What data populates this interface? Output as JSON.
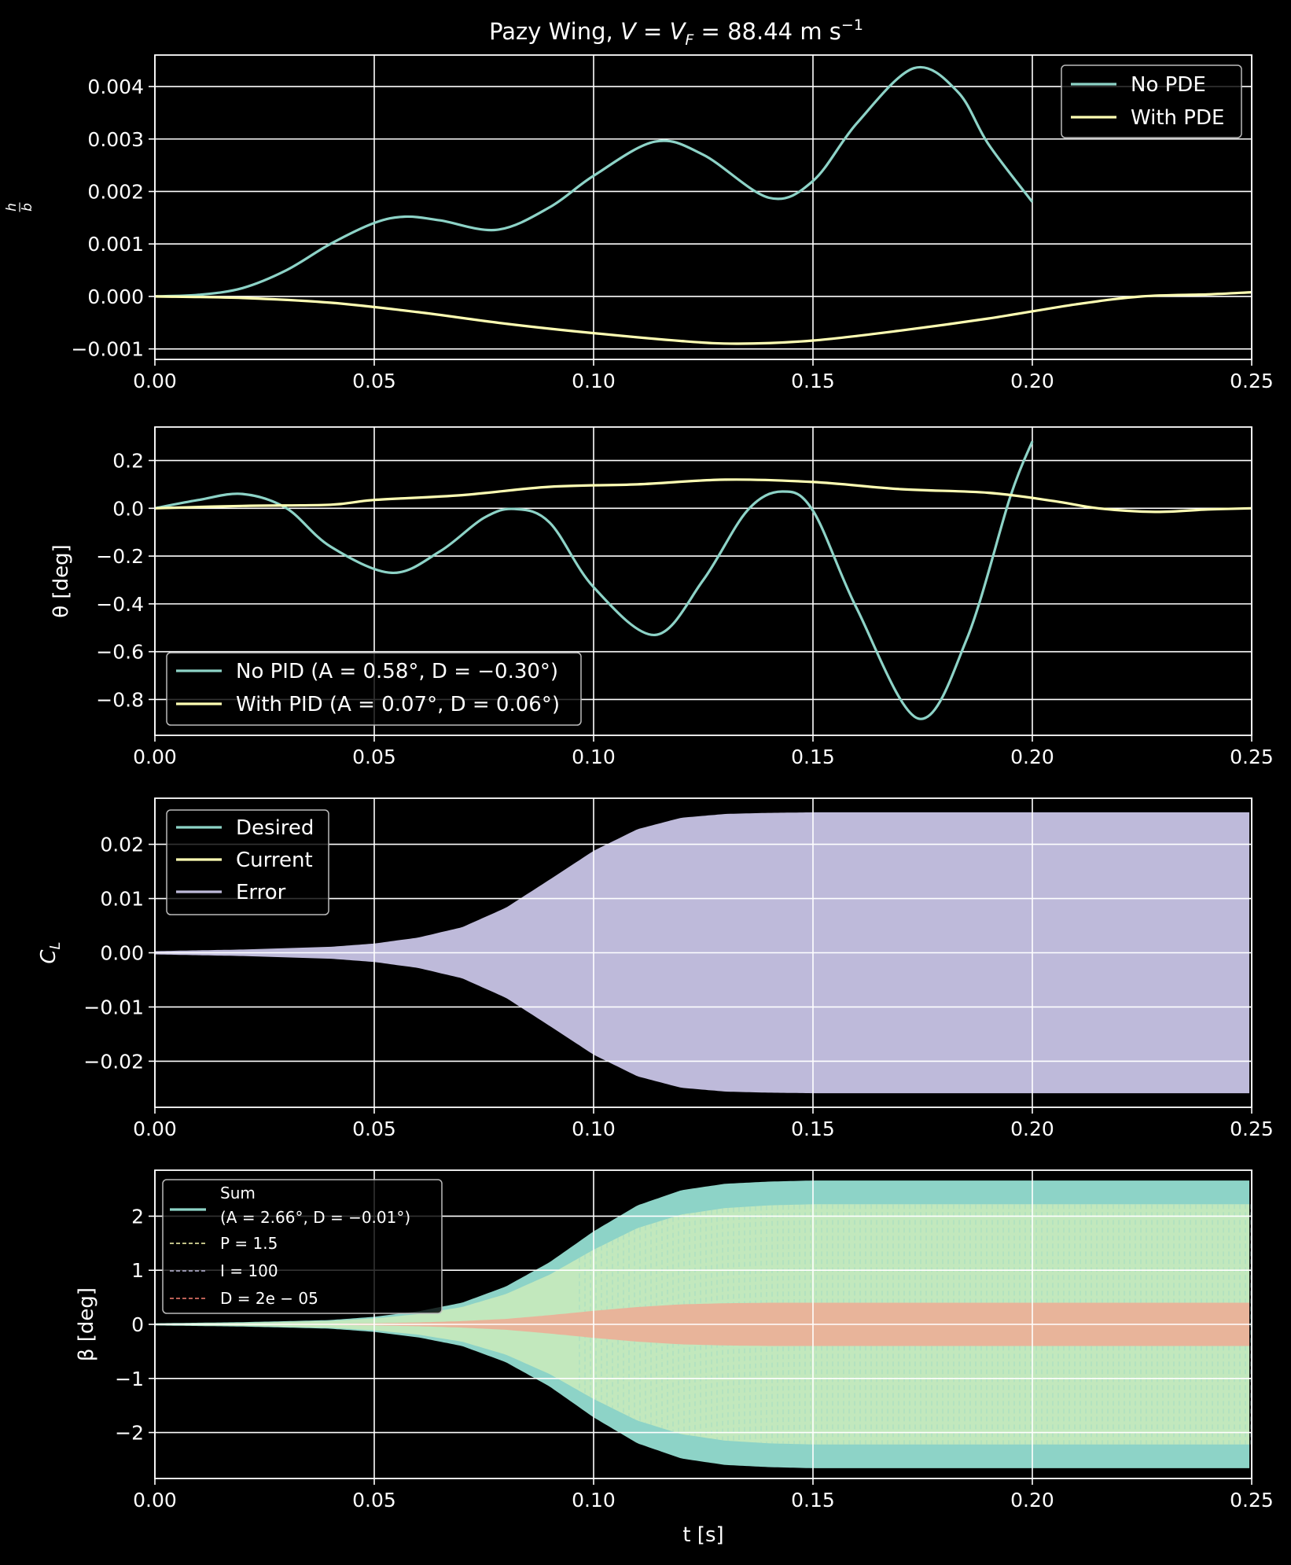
{
  "figure": {
    "title": "Pazy Wing, V = V_F = 88.44 m s⁻¹",
    "title_parts": {
      "prefix": "Pazy Wing, ",
      "v": "V",
      "eq": " = ",
      "vf": "V",
      "vf_sub": "F",
      "value": " = 88.44 m s",
      "sup": "−1"
    },
    "background": "#000000",
    "colors": {
      "teal": "#8dd3c7",
      "yellow": "#ffffb3",
      "lavender": "#bebada",
      "salmon": "#fb8072",
      "white": "#ffffff"
    }
  },
  "chart_data": [
    {
      "type": "line",
      "ylabel": "h/b",
      "ylabel_parts": {
        "num": "h",
        "den": "b"
      },
      "xlim": [
        0,
        0.25
      ],
      "ylim": [
        -0.0012,
        0.0046
      ],
      "xticks": [
        0,
        0.05,
        0.1,
        0.15,
        0.2,
        0.25
      ],
      "xtick_labels": [
        "0.00",
        "0.05",
        "0.10",
        "0.15",
        "0.20",
        "0.25"
      ],
      "yticks": [
        -0.001,
        0.0,
        0.001,
        0.002,
        0.003,
        0.004
      ],
      "ytick_labels": [
        "−0.001",
        "0.000",
        "0.001",
        "0.002",
        "0.003",
        "0.004"
      ],
      "grid": true,
      "legend_placement": "upper-right",
      "series": [
        {
          "name": "No PDE",
          "color": "#8dd3c7",
          "x": [
            0,
            0.01,
            0.02,
            0.03,
            0.04,
            0.05,
            0.057,
            0.065,
            0.078,
            0.09,
            0.1,
            0.114,
            0.125,
            0.14,
            0.15,
            0.16,
            0.173,
            0.183,
            0.19,
            0.2
          ],
          "y": [
            0,
            3e-05,
            0.00016,
            0.0005,
            0.001,
            0.0014,
            0.00152,
            0.00145,
            0.00127,
            0.0017,
            0.0023,
            0.00295,
            0.0027,
            0.00188,
            0.0022,
            0.0033,
            0.00435,
            0.0039,
            0.0029,
            0.0018
          ]
        },
        {
          "name": "With PDE",
          "color": "#ffffb3",
          "x": [
            0,
            0.02,
            0.04,
            0.06,
            0.08,
            0.1,
            0.12,
            0.133,
            0.15,
            0.17,
            0.19,
            0.21,
            0.225,
            0.24,
            0.25
          ],
          "y": [
            0,
            -3e-05,
            -0.00012,
            -0.0003,
            -0.00052,
            -0.0007,
            -0.00085,
            -0.0009,
            -0.00084,
            -0.00065,
            -0.00042,
            -0.00015,
            0.0,
            4e-05,
            8e-05
          ]
        }
      ]
    },
    {
      "type": "line",
      "ylabel": "θ [deg]",
      "xlim": [
        0,
        0.25
      ],
      "ylim": [
        -0.95,
        0.34
      ],
      "xticks": [
        0,
        0.05,
        0.1,
        0.15,
        0.2,
        0.25
      ],
      "xtick_labels": [
        "0.00",
        "0.05",
        "0.10",
        "0.15",
        "0.20",
        "0.25"
      ],
      "yticks": [
        -0.8,
        -0.6,
        -0.4,
        -0.2,
        0.0,
        0.2
      ],
      "ytick_labels": [
        "−0.8",
        "−0.6",
        "−0.4",
        "−0.2",
        "0.0",
        "0.2"
      ],
      "grid": true,
      "legend_placement": "lower-left",
      "series": [
        {
          "name": "No PID (A = 0.58°, D = −0.30°)",
          "color": "#8dd3c7",
          "x": [
            0,
            0.01,
            0.02,
            0.03,
            0.04,
            0.054,
            0.065,
            0.075,
            0.082,
            0.09,
            0.1,
            0.114,
            0.125,
            0.135,
            0.143,
            0.15,
            0.16,
            0.174,
            0.185,
            0.195,
            0.2
          ],
          "y": [
            0,
            0.035,
            0.06,
            0.0,
            -0.16,
            -0.27,
            -0.18,
            -0.04,
            -0.003,
            -0.06,
            -0.33,
            -0.53,
            -0.3,
            -0.01,
            0.07,
            -0.01,
            -0.42,
            -0.88,
            -0.55,
            0.05,
            0.28
          ]
        },
        {
          "name": "With PID (A = 0.07°, D = 0.06°)",
          "color": "#ffffb3",
          "x": [
            0,
            0.02,
            0.04,
            0.05,
            0.07,
            0.09,
            0.11,
            0.13,
            0.15,
            0.17,
            0.19,
            0.205,
            0.215,
            0.228,
            0.24,
            0.25
          ],
          "y": [
            0,
            0.01,
            0.015,
            0.035,
            0.055,
            0.09,
            0.1,
            0.12,
            0.11,
            0.08,
            0.065,
            0.03,
            0.0,
            -0.015,
            -0.005,
            0.0
          ]
        }
      ]
    },
    {
      "type": "area",
      "ylabel": "C_L",
      "ylabel_parts": {
        "main": "C",
        "sub": "L"
      },
      "xlim": [
        0,
        0.25
      ],
      "ylim": [
        -0.0285,
        0.0285
      ],
      "xticks": [
        0,
        0.05,
        0.1,
        0.15,
        0.2,
        0.25
      ],
      "xtick_labels": [
        "0.00",
        "0.05",
        "0.10",
        "0.15",
        "0.20",
        "0.25"
      ],
      "yticks": [
        -0.02,
        -0.01,
        0.0,
        0.01,
        0.02
      ],
      "ytick_labels": [
        "−0.02",
        "−0.01",
        "0.00",
        "0.01",
        "0.02"
      ],
      "grid": true,
      "legend_placement": "upper-left",
      "legend": [
        {
          "name": "Desired",
          "color": "#8dd3c7"
        },
        {
          "name": "Current",
          "color": "#ffffb3"
        },
        {
          "name": "Error",
          "color": "#bebada"
        }
      ],
      "envelope": {
        "name": "Error",
        "color": "#bebada",
        "x": [
          0,
          0.02,
          0.04,
          0.05,
          0.06,
          0.07,
          0.08,
          0.09,
          0.1,
          0.11,
          0.12,
          0.13,
          0.14,
          0.15,
          0.2,
          0.25
        ],
        "amplitude": [
          0.0003,
          0.0006,
          0.0011,
          0.0017,
          0.0028,
          0.0047,
          0.0083,
          0.0135,
          0.0188,
          0.0228,
          0.0249,
          0.0256,
          0.0258,
          0.0259,
          0.0259,
          0.0259
        ]
      }
    },
    {
      "type": "area",
      "ylabel": "β [deg]",
      "xlabel": "t [s]",
      "xlim": [
        0,
        0.25
      ],
      "ylim": [
        -2.85,
        2.85
      ],
      "xticks": [
        0,
        0.05,
        0.1,
        0.15,
        0.2,
        0.25
      ],
      "xtick_labels": [
        "0.00",
        "0.05",
        "0.10",
        "0.15",
        "0.20",
        "0.25"
      ],
      "yticks": [
        -2,
        -1,
        0,
        1,
        2
      ],
      "ytick_labels": [
        "−2",
        "−1",
        "0",
        "1",
        "2"
      ],
      "grid": true,
      "legend_placement": "upper-left",
      "legend": [
        {
          "name": "Sum",
          "note": "(A = 2.66°, D = −0.01°)",
          "color": "#8dd3c7",
          "style": "solid"
        },
        {
          "name": "P = 1.5",
          "color": "#ffffb3",
          "style": "dashed"
        },
        {
          "name": "I = 100",
          "color": "#bebada",
          "style": "dashed"
        },
        {
          "name": "D = 2e − 05",
          "color": "#fb8072",
          "style": "dashed"
        }
      ],
      "envelopes": [
        {
          "name": "Sum",
          "color": "#8dd3c7",
          "x": [
            0,
            0.02,
            0.04,
            0.05,
            0.06,
            0.07,
            0.08,
            0.09,
            0.1,
            0.11,
            0.12,
            0.13,
            0.14,
            0.15,
            0.2,
            0.25
          ],
          "amplitude": [
            0.02,
            0.04,
            0.08,
            0.14,
            0.24,
            0.4,
            0.7,
            1.15,
            1.72,
            2.2,
            2.48,
            2.6,
            2.64,
            2.66,
            2.66,
            2.66
          ]
        },
        {
          "name": "P = 1.5",
          "color": "#ffffb3",
          "x": [
            0,
            0.02,
            0.04,
            0.05,
            0.06,
            0.07,
            0.08,
            0.09,
            0.1,
            0.11,
            0.12,
            0.13,
            0.14,
            0.15,
            0.2,
            0.25
          ],
          "amplitude": [
            0.015,
            0.03,
            0.065,
            0.11,
            0.19,
            0.32,
            0.56,
            0.92,
            1.38,
            1.78,
            2.03,
            2.15,
            2.2,
            2.22,
            2.22,
            2.22
          ]
        },
        {
          "name": "D = 2e − 05",
          "color": "#fb8072",
          "x": [
            0,
            0.02,
            0.04,
            0.05,
            0.06,
            0.07,
            0.08,
            0.09,
            0.1,
            0.11,
            0.12,
            0.13,
            0.14,
            0.15,
            0.2,
            0.25
          ],
          "amplitude": [
            0.003,
            0.006,
            0.012,
            0.02,
            0.035,
            0.06,
            0.1,
            0.17,
            0.25,
            0.32,
            0.37,
            0.39,
            0.4,
            0.4,
            0.4,
            0.4
          ]
        }
      ]
    }
  ]
}
